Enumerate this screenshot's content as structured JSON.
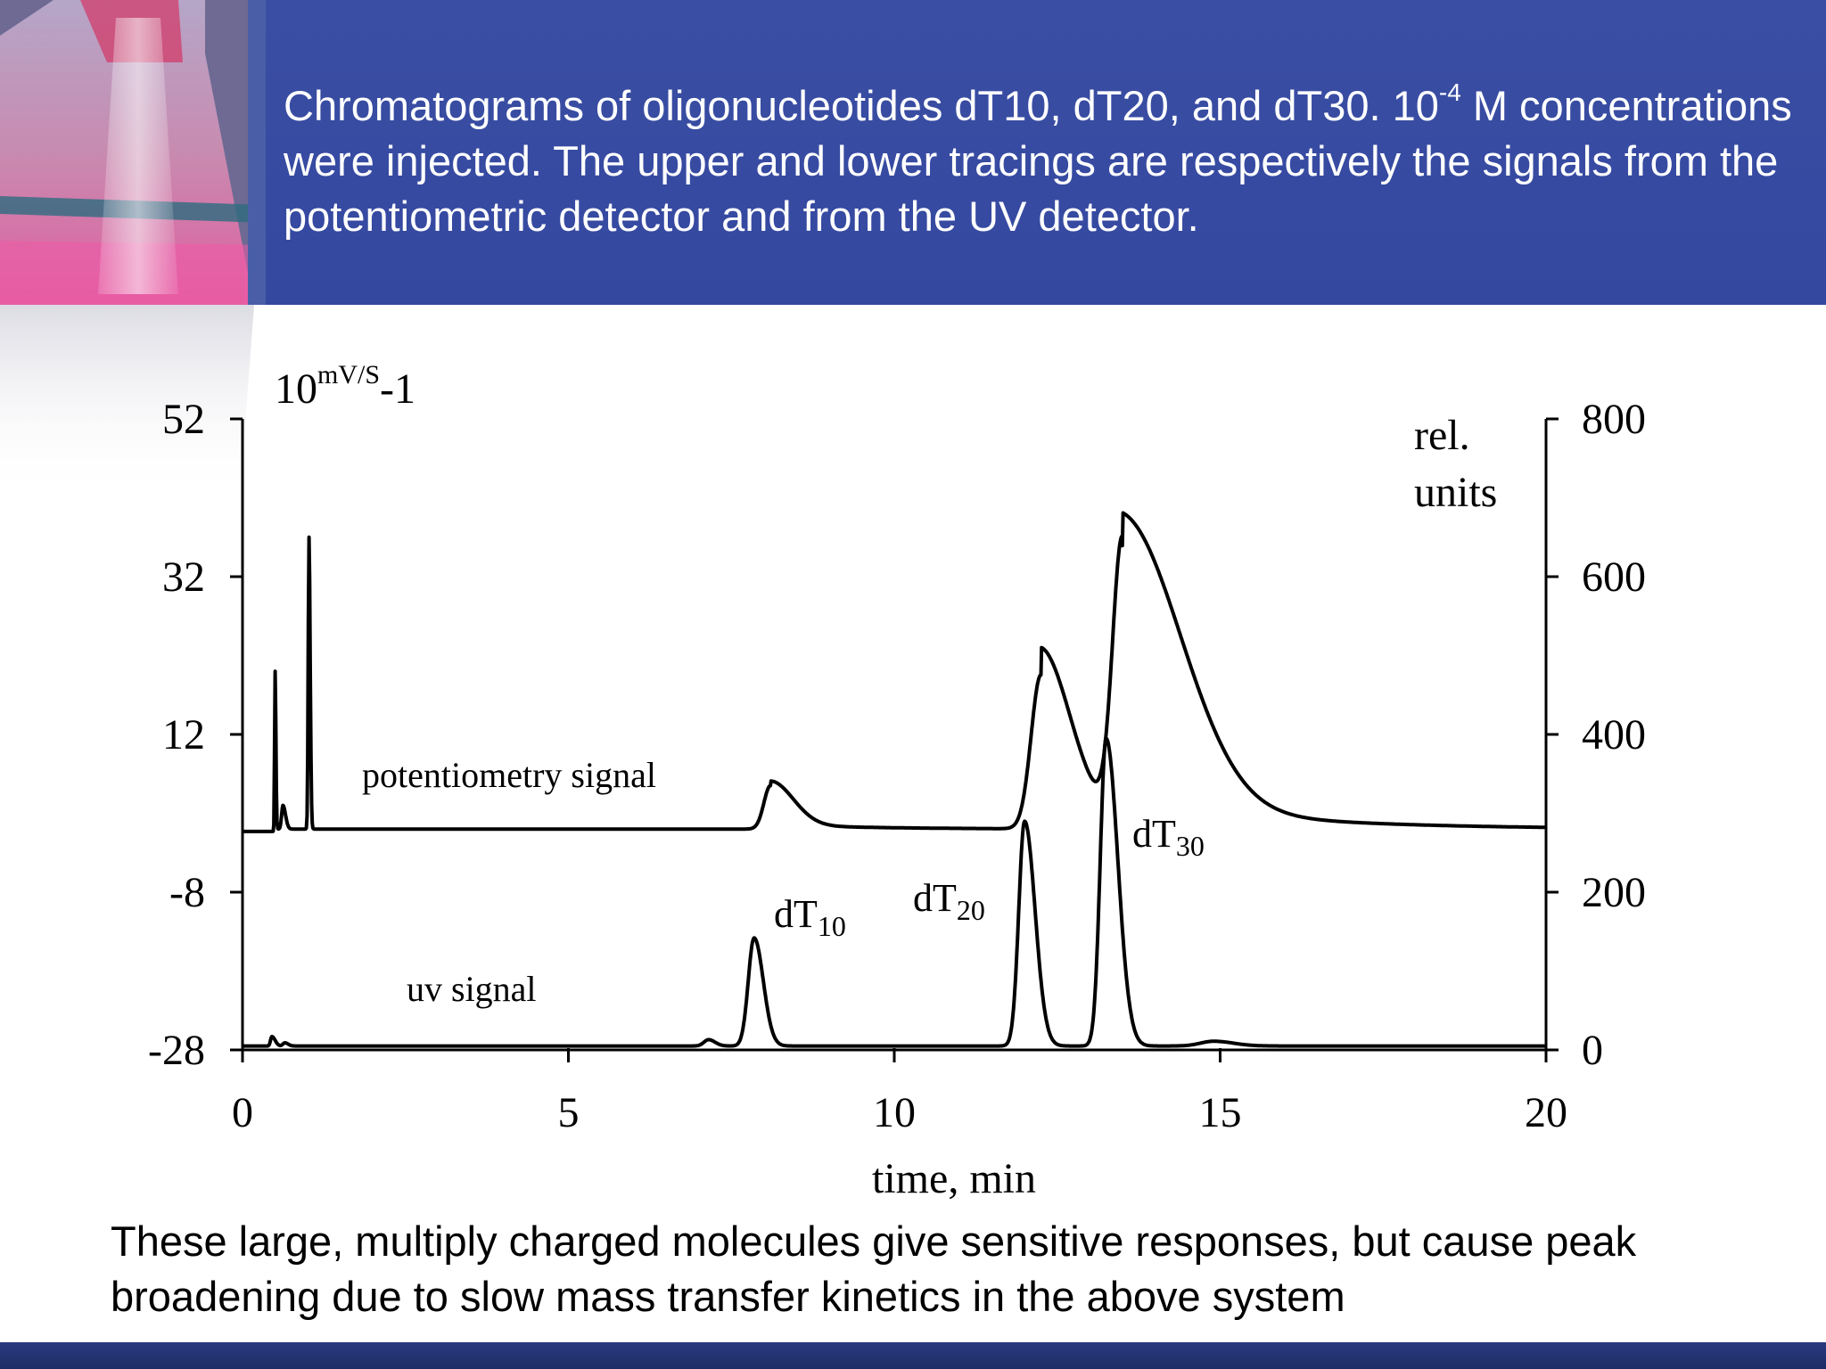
{
  "header": {
    "caption_part1": "Chromatograms of oligonucleotides dT10, dT20, and dT30. 10",
    "caption_sup": "-4",
    "caption_part2": " M concentrations were injected. The upper and lower tracings are respectively the signals from the potentiometric detector and from the UV detector."
  },
  "footer": {
    "text": "These large, multiply charged molecules give sensitive responses, but cause peak broadening due to slow mass transfer kinetics in the above system"
  },
  "colors": {
    "header_band": "#3548a0",
    "bottom_band": "#1e2c66",
    "trace": "#000000"
  },
  "chart_data": {
    "type": "line",
    "xlabel": "time, min",
    "xlim": [
      0,
      20
    ],
    "x_ticks": [
      "0",
      "5",
      "10",
      "15",
      "20"
    ],
    "y_left": {
      "label_base": "10",
      "label_sup": "mV/S",
      "label_suffix": "-1",
      "lim": [
        -28,
        52
      ],
      "ticks": [
        "52",
        "32",
        "12",
        "-8",
        "-28"
      ]
    },
    "y_right": {
      "label_line1": "rel.",
      "label_line2": "units",
      "lim": [
        0,
        800
      ],
      "ticks": [
        "800",
        "600",
        "400",
        "200",
        "0"
      ]
    },
    "annotations": {
      "potentiometry": "potentiometry signal",
      "uv": "uv signal",
      "dT10_base": "dT",
      "dT10_sub": "10",
      "dT20_base": "dT",
      "dT20_sub": "20",
      "dT30_base": "dT",
      "dT30_sub": "30"
    },
    "series": [
      {
        "axis": "left",
        "baseline": 0,
        "peaks": [
          {
            "t": 0.5,
            "h": 20,
            "rise": 0.008,
            "fall": 0.012
          },
          {
            "t": 0.62,
            "h": 3,
            "rise": 0.02,
            "fall": 0.04
          },
          {
            "t": 1.02,
            "h": 37,
            "rise": 0.012,
            "fall": 0.018
          },
          {
            "t": 8.1,
            "h": 5.5,
            "rise": 0.1,
            "fall": 0.35
          },
          {
            "t": 12.25,
            "h": 19.5,
            "rise": 0.15,
            "fall": 0.45
          },
          {
            "t": 13.5,
            "h": 35.5,
            "rise": 0.15,
            "fall": 0.9
          }
        ]
      },
      {
        "axis": "right",
        "baseline": 5,
        "peaks": [
          {
            "t": 0.45,
            "h": 12,
            "rise": 0.02,
            "fall": 0.05
          },
          {
            "t": 0.65,
            "h": 4,
            "rise": 0.03,
            "fall": 0.05
          },
          {
            "t": 7.15,
            "h": 8,
            "rise": 0.07,
            "fall": 0.1
          },
          {
            "t": 7.85,
            "h": 137,
            "rise": 0.09,
            "fall": 0.14
          },
          {
            "t": 12.0,
            "h": 285,
            "rise": 0.09,
            "fall": 0.16
          },
          {
            "t": 13.25,
            "h": 390,
            "rise": 0.09,
            "fall": 0.18
          },
          {
            "t": 14.9,
            "h": 6,
            "rise": 0.2,
            "fall": 0.3
          }
        ]
      }
    ]
  }
}
